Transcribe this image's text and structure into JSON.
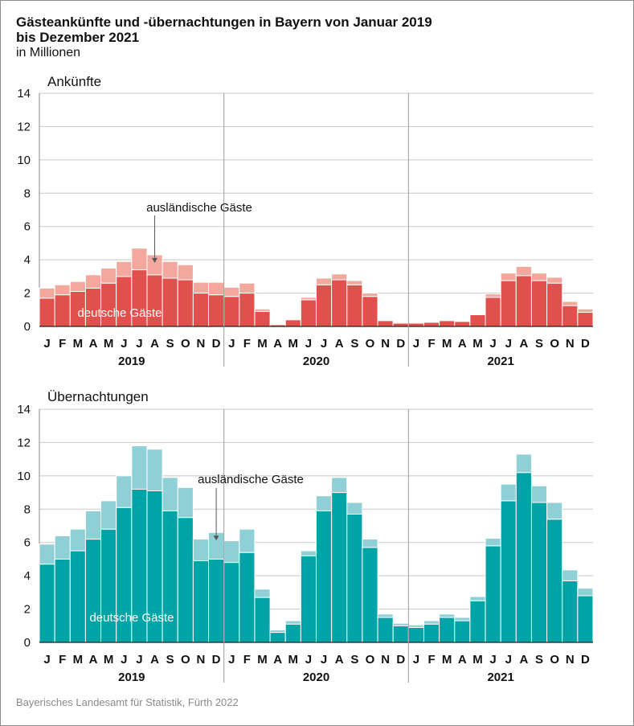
{
  "title_line1": "Gästeankünfte und -übernachtungen in Bayern von Januar 2019",
  "title_line2": "bis Dezember 2021",
  "subtitle": "in Millionen",
  "source": "Bayerisches Landesamt für Statistik, Fürth 2022",
  "colors": {
    "arrivals_domestic": "#e0504d",
    "arrivals_foreign": "#f2a89c",
    "overnight_domestic": "#00a3a6",
    "overnight_foreign": "#8fd0d6",
    "grid": "#c8c8c8"
  },
  "chart_data": [
    {
      "type": "bar",
      "stacked": true,
      "title": "Ankünfte",
      "ylim": [
        0,
        14
      ],
      "yticks": [
        0,
        2,
        4,
        6,
        8,
        10,
        12,
        14
      ],
      "grid": true,
      "categories": [
        "J",
        "F",
        "M",
        "A",
        "M",
        "J",
        "J",
        "A",
        "S",
        "O",
        "N",
        "D",
        "J",
        "F",
        "M",
        "A",
        "M",
        "J",
        "J",
        "A",
        "S",
        "O",
        "N",
        "D",
        "J",
        "F",
        "M",
        "A",
        "M",
        "J",
        "J",
        "A",
        "S",
        "O",
        "N",
        "D"
      ],
      "years": [
        "2019",
        "2020",
        "2021"
      ],
      "series": [
        {
          "name": "deutsche Gäste",
          "values": [
            1.7,
            1.9,
            2.1,
            2.3,
            2.6,
            3.0,
            3.4,
            3.1,
            2.9,
            2.8,
            2.0,
            1.9,
            1.8,
            2.0,
            0.9,
            0.1,
            0.4,
            1.6,
            2.5,
            2.8,
            2.5,
            1.8,
            0.35,
            0.2,
            0.2,
            0.25,
            0.35,
            0.3,
            0.7,
            1.75,
            2.75,
            3.05,
            2.75,
            2.6,
            1.25,
            0.85
          ]
        },
        {
          "name": "ausländische Gäste",
          "values": [
            0.6,
            0.6,
            0.6,
            0.8,
            0.9,
            0.9,
            1.3,
            1.2,
            1.0,
            0.9,
            0.65,
            0.75,
            0.55,
            0.6,
            0.15,
            0.05,
            0.05,
            0.15,
            0.4,
            0.35,
            0.25,
            0.2,
            0.05,
            0.05,
            0.05,
            0.05,
            0.05,
            0.05,
            0.05,
            0.2,
            0.45,
            0.55,
            0.45,
            0.35,
            0.25,
            0.2
          ]
        }
      ],
      "annotations": {
        "foreign": "ausländische Gäste",
        "domestic": "deutsche Gäste"
      }
    },
    {
      "type": "bar",
      "stacked": true,
      "title": "Übernachtungen",
      "ylim": [
        0,
        14
      ],
      "yticks": [
        0,
        2,
        4,
        6,
        8,
        10,
        12,
        14
      ],
      "grid": true,
      "categories": [
        "J",
        "F",
        "M",
        "A",
        "M",
        "J",
        "J",
        "A",
        "S",
        "O",
        "N",
        "D",
        "J",
        "F",
        "M",
        "A",
        "M",
        "J",
        "J",
        "A",
        "S",
        "O",
        "N",
        "D",
        "J",
        "F",
        "M",
        "A",
        "M",
        "J",
        "J",
        "A",
        "S",
        "O",
        "N",
        "D"
      ],
      "years": [
        "2019",
        "2020",
        "2021"
      ],
      "series": [
        {
          "name": "deutsche Gäste",
          "values": [
            4.7,
            5.0,
            5.5,
            6.2,
            6.8,
            8.1,
            9.2,
            9.1,
            7.9,
            7.5,
            4.9,
            5.0,
            4.8,
            5.4,
            2.7,
            0.6,
            1.1,
            5.2,
            7.9,
            9.0,
            7.7,
            5.7,
            1.5,
            1.0,
            0.9,
            1.1,
            1.5,
            1.3,
            2.5,
            5.8,
            8.5,
            10.2,
            8.4,
            7.4,
            3.7,
            2.8
          ]
        },
        {
          "name": "ausländische Gäste",
          "values": [
            1.2,
            1.4,
            1.3,
            1.7,
            1.7,
            1.9,
            2.6,
            2.5,
            2.0,
            1.8,
            1.3,
            1.6,
            1.3,
            1.4,
            0.5,
            0.15,
            0.2,
            0.3,
            0.9,
            0.9,
            0.7,
            0.5,
            0.2,
            0.15,
            0.15,
            0.2,
            0.2,
            0.2,
            0.25,
            0.45,
            1.0,
            1.1,
            1.0,
            1.0,
            0.65,
            0.45
          ]
        }
      ],
      "annotations": {
        "foreign": "ausländische Gäste",
        "domestic": "deutsche Gäste"
      }
    }
  ]
}
